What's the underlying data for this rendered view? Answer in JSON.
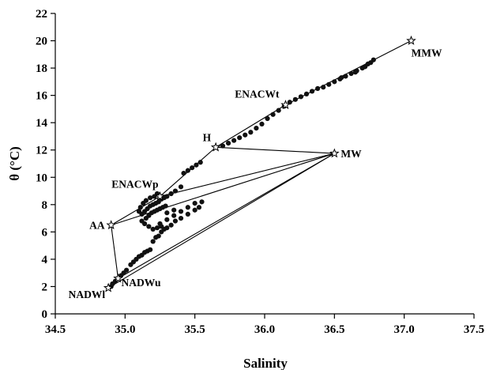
{
  "chart_data": {
    "type": "scatter",
    "xlabel": "Salinity",
    "ylabel": "θ (°C)",
    "xlim": [
      34.5,
      37.5
    ],
    "ylim": [
      0,
      22
    ],
    "xticks": [
      "34.5",
      "35.0",
      "35.5",
      "36.0",
      "36.5",
      "37.0",
      "37.5"
    ],
    "yticks": [
      "0",
      "2",
      "4",
      "6",
      "8",
      "10",
      "12",
      "14",
      "16",
      "18",
      "20",
      "22"
    ],
    "grid": false,
    "water_masses": [
      {
        "name": "MMW",
        "s": 37.05,
        "t": 20.0
      },
      {
        "name": "ENACWt",
        "s": 36.15,
        "t": 15.3
      },
      {
        "name": "H",
        "s": 35.65,
        "t": 12.2
      },
      {
        "name": "MW",
        "s": 36.5,
        "t": 11.75
      },
      {
        "name": "ENACWp",
        "s": 35.25,
        "t": 8.6
      },
      {
        "name": "AA",
        "s": 34.9,
        "t": 6.5
      },
      {
        "name": "NADWu",
        "s": 34.95,
        "t": 2.6
      },
      {
        "name": "NADWl",
        "s": 34.88,
        "t": 1.9
      }
    ],
    "mixing_lines": [
      [
        "MMW",
        "ENACWt"
      ],
      [
        "ENACWt",
        "H"
      ],
      [
        "H",
        "MW"
      ],
      [
        "H",
        "ENACWp"
      ],
      [
        "ENACWp",
        "MW"
      ],
      [
        "ENACWp",
        "AA"
      ],
      [
        "AA",
        "MW"
      ],
      [
        "AA",
        "NADWu"
      ],
      [
        "NADWu",
        "MW"
      ],
      [
        "NADWu",
        "NADWl"
      ],
      [
        "NADWl",
        "MW"
      ]
    ],
    "observations": [
      [
        34.9,
        2.0
      ],
      [
        34.91,
        2.2
      ],
      [
        34.93,
        2.4
      ],
      [
        34.95,
        2.6
      ],
      [
        34.97,
        2.8
      ],
      [
        34.99,
        3.0
      ],
      [
        35.01,
        3.2
      ],
      [
        35.04,
        3.6
      ],
      [
        35.06,
        3.8
      ],
      [
        35.08,
        4.0
      ],
      [
        35.1,
        4.2
      ],
      [
        35.12,
        4.3
      ],
      [
        35.14,
        4.5
      ],
      [
        35.16,
        4.6
      ],
      [
        35.18,
        4.7
      ],
      [
        35.2,
        5.3
      ],
      [
        35.22,
        5.6
      ],
      [
        35.24,
        5.7
      ],
      [
        35.26,
        6.0
      ],
      [
        35.28,
        6.2
      ],
      [
        35.3,
        6.3
      ],
      [
        35.33,
        6.5
      ],
      [
        35.36,
        6.8
      ],
      [
        35.4,
        7.0
      ],
      [
        35.45,
        7.3
      ],
      [
        35.5,
        7.6
      ],
      [
        35.53,
        7.8
      ],
      [
        35.25,
        6.6
      ],
      [
        35.3,
        6.9
      ],
      [
        35.35,
        7.2
      ],
      [
        35.4,
        7.5
      ],
      [
        35.45,
        7.8
      ],
      [
        35.5,
        8.1
      ],
      [
        35.55,
        8.2
      ],
      [
        35.15,
        7.0
      ],
      [
        35.17,
        7.2
      ],
      [
        35.19,
        7.4
      ],
      [
        35.21,
        7.5
      ],
      [
        35.23,
        7.6
      ],
      [
        35.25,
        7.7
      ],
      [
        35.27,
        7.8
      ],
      [
        35.29,
        7.9
      ],
      [
        35.12,
        7.3
      ],
      [
        35.14,
        7.5
      ],
      [
        35.16,
        7.7
      ],
      [
        35.18,
        7.9
      ],
      [
        35.2,
        8.0
      ],
      [
        35.22,
        8.1
      ],
      [
        35.24,
        8.2
      ],
      [
        35.26,
        8.4
      ],
      [
        35.28,
        8.5
      ],
      [
        35.3,
        8.6
      ],
      [
        35.33,
        8.8
      ],
      [
        35.36,
        9.0
      ],
      [
        35.4,
        9.3
      ],
      [
        35.1,
        7.5
      ],
      [
        35.11,
        7.8
      ],
      [
        35.13,
        8.1
      ],
      [
        35.15,
        8.3
      ],
      [
        35.18,
        8.5
      ],
      [
        35.21,
        8.6
      ],
      [
        35.23,
        8.8
      ],
      [
        35.12,
        6.8
      ],
      [
        35.14,
        6.6
      ],
      [
        35.17,
        6.4
      ],
      [
        35.2,
        6.2
      ],
      [
        35.23,
        6.3
      ],
      [
        35.26,
        6.4
      ],
      [
        35.3,
        7.4
      ],
      [
        35.35,
        7.6
      ],
      [
        35.42,
        10.3
      ],
      [
        35.45,
        10.5
      ],
      [
        35.48,
        10.7
      ],
      [
        35.51,
        10.9
      ],
      [
        35.54,
        11.1
      ],
      [
        35.7,
        12.3
      ],
      [
        35.74,
        12.5
      ],
      [
        35.78,
        12.7
      ],
      [
        35.82,
        12.9
      ],
      [
        35.86,
        13.1
      ],
      [
        35.9,
        13.3
      ],
      [
        35.94,
        13.6
      ],
      [
        35.98,
        13.9
      ],
      [
        36.02,
        14.3
      ],
      [
        36.06,
        14.6
      ],
      [
        36.1,
        14.9
      ],
      [
        36.14,
        15.2
      ],
      [
        36.18,
        15.5
      ],
      [
        36.22,
        15.7
      ],
      [
        36.26,
        15.9
      ],
      [
        36.3,
        16.1
      ],
      [
        36.34,
        16.3
      ],
      [
        36.38,
        16.5
      ],
      [
        36.42,
        16.6
      ],
      [
        36.46,
        16.8
      ],
      [
        36.5,
        17.0
      ],
      [
        36.54,
        17.2
      ],
      [
        36.58,
        17.4
      ],
      [
        36.62,
        17.6
      ],
      [
        36.66,
        17.8
      ],
      [
        36.7,
        18.0
      ],
      [
        36.74,
        18.3
      ],
      [
        36.78,
        18.6
      ],
      [
        36.55,
        17.3
      ],
      [
        36.65,
        17.7
      ],
      [
        36.72,
        18.1
      ],
      [
        36.76,
        18.4
      ]
    ]
  }
}
